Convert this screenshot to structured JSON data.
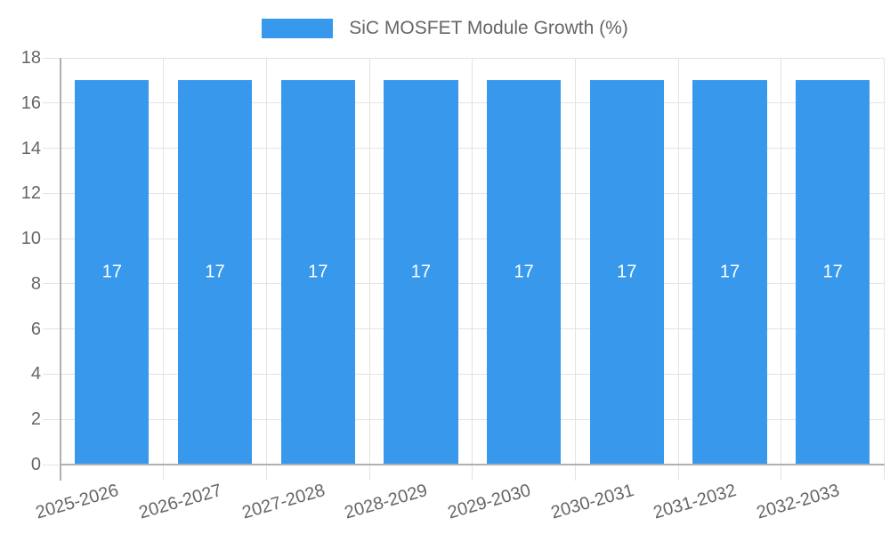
{
  "legend": {
    "label": "SiC MOSFET Module Growth (%)"
  },
  "colors": {
    "bar": "#3899ec",
    "bar_label": "#ffffff",
    "grid": "#e3e3e3",
    "axis": "#b0b0b0",
    "text": "#666666"
  },
  "chart_data": {
    "type": "bar",
    "title": "SiC MOSFET Module Growth (%)",
    "categories": [
      "2025-2026",
      "2026-2027",
      "2027-2028",
      "2028-2029",
      "2029-2030",
      "2030-2031",
      "2031-2032",
      "2032-2033"
    ],
    "values": [
      17,
      17,
      17,
      17,
      17,
      17,
      17,
      17
    ],
    "data_labels": [
      "17",
      "17",
      "17",
      "17",
      "17",
      "17",
      "17",
      "17"
    ],
    "xlabel": "",
    "ylabel": "",
    "ylim": [
      0,
      18
    ],
    "ytick_step": 2,
    "yticks": [
      0,
      2,
      4,
      6,
      8,
      10,
      12,
      14,
      16,
      18
    ],
    "grid": true,
    "legend_position": "top",
    "bar_color": "#3899ec",
    "x_label_rotation_deg": -16
  }
}
